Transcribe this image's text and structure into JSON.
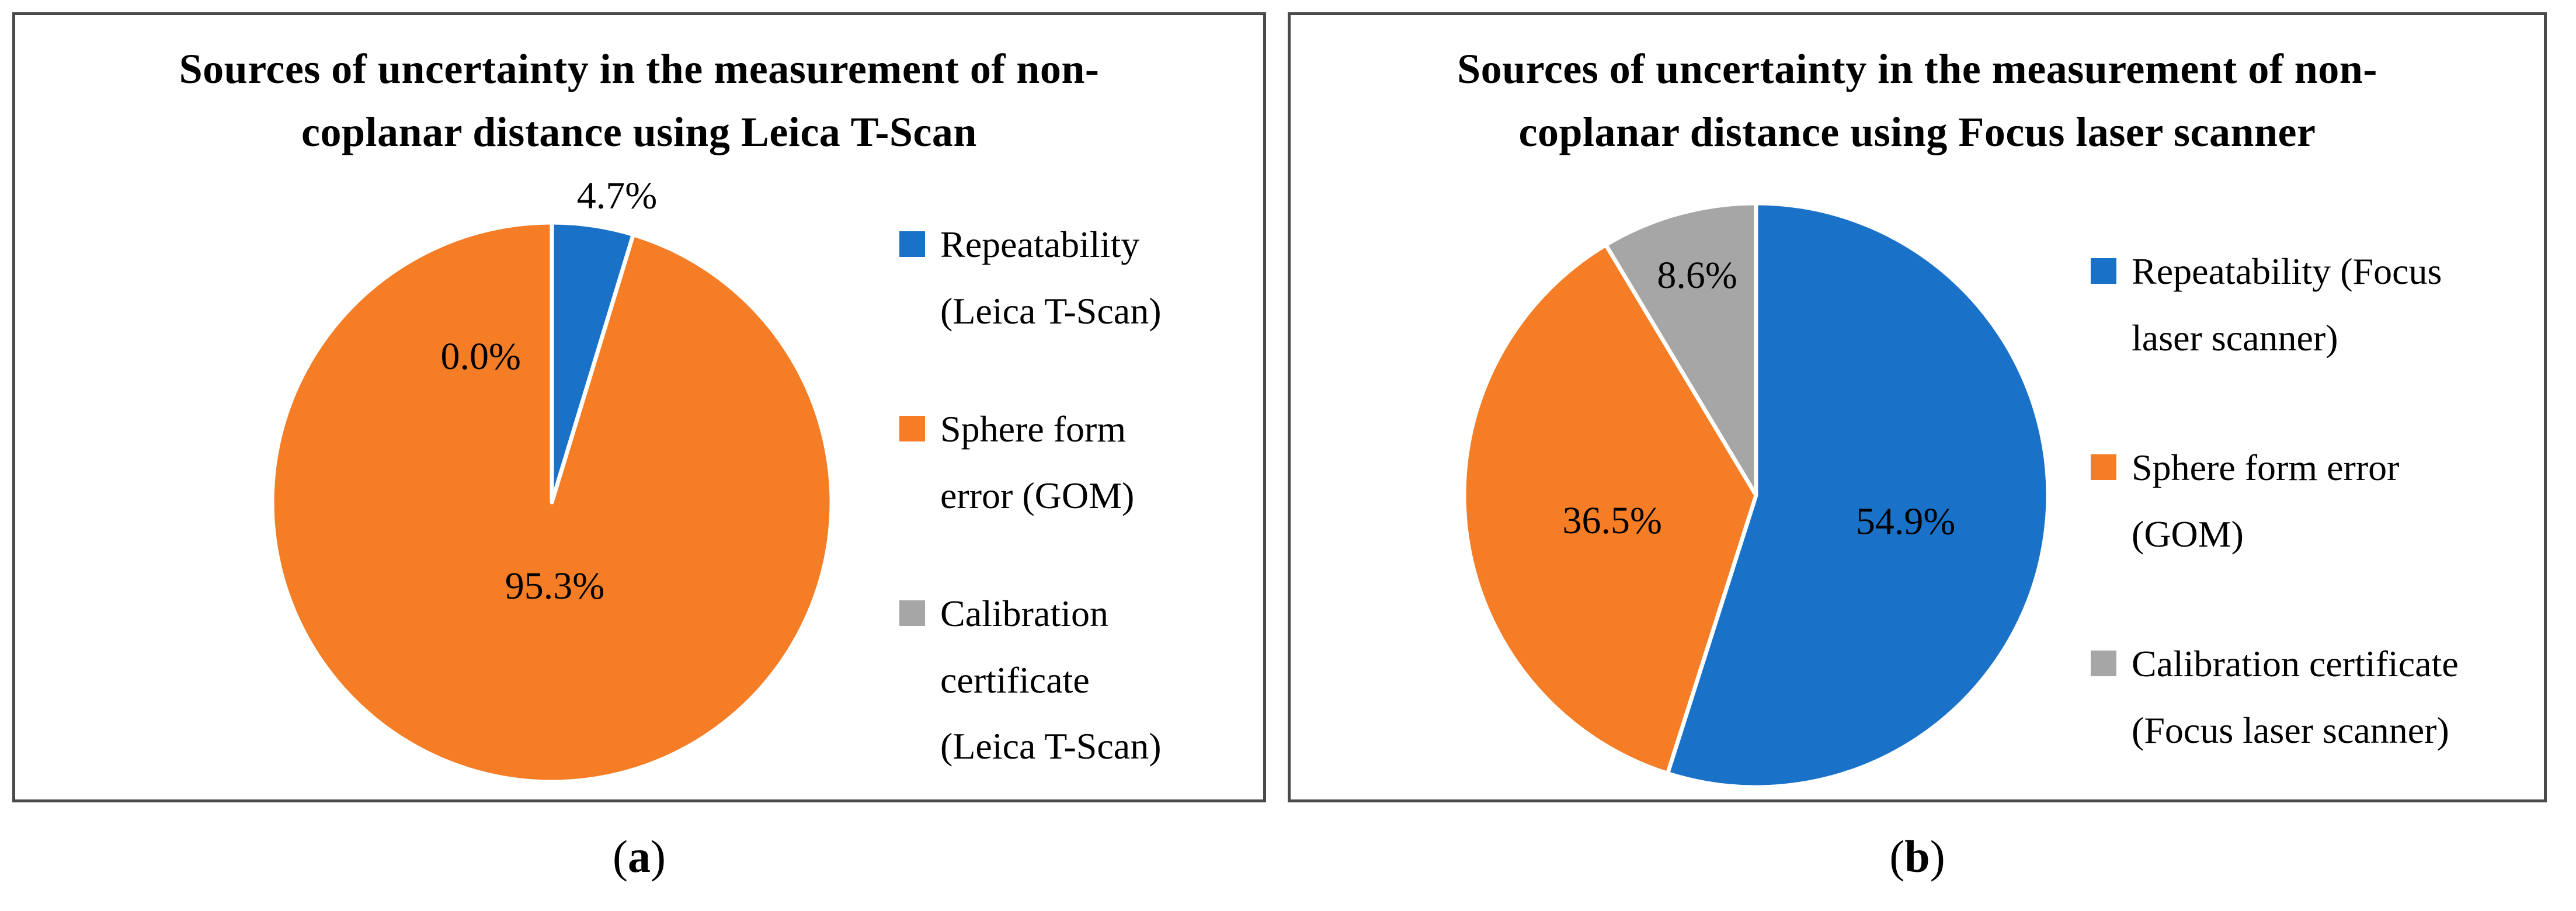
{
  "page": {
    "background": "#ffffff",
    "panel_border_color": "#4a4a4a"
  },
  "colors": {
    "blue": "#1A72C8",
    "orange": "#F57D26",
    "gray": "#A6A6A6",
    "text": "#000000"
  },
  "panels": [
    {
      "id": "a",
      "title_display": "Sources of uncertainty in the measurement of non-\ncoplanar distance using Leica T-Scan",
      "legend": [
        {
          "label_display": "Repeatability\n(Leica T-Scan)",
          "color": "#1A72C8"
        },
        {
          "label_display": "Sphere form\nerror (GOM)",
          "color": "#F57D26"
        },
        {
          "label_display": "Calibration\ncertificate\n(Leica T-Scan)",
          "color": "#A6A6A6"
        }
      ],
      "caption": {
        "open": "(",
        "letter": "a",
        "close": ")"
      }
    },
    {
      "id": "b",
      "title_display": "Sources of uncertainty in the measurement of non-\ncoplanar distance using Focus laser scanner",
      "legend": [
        {
          "label_display": "Repeatability (Focus\nlaser scanner)",
          "color": "#1A72C8"
        },
        {
          "label_display": "Sphere form error\n(GOM)",
          "color": "#F57D26"
        },
        {
          "label_display": "Calibration certificate\n(Focus laser scanner)",
          "color": "#A6A6A6"
        }
      ],
      "caption": {
        "open": "(",
        "letter": "b",
        "close": ")"
      }
    }
  ],
  "chart_data": [
    {
      "type": "pie",
      "title": "Sources of uncertainty in the measurement of non-coplanar distance using Leica T-Scan",
      "start_angle_deg": 0,
      "direction": "clockwise",
      "legend_position": "right",
      "slices": [
        {
          "name": "Repeatability (Leica T-Scan)",
          "value_pct": 4.7,
          "data_label": "4.7%",
          "color": "#1A72C8",
          "label_angle_deg": 12,
          "label_r_frac": 1.12,
          "label_inside": false
        },
        {
          "name": "Sphere form error (GOM)",
          "value_pct": 95.3,
          "data_label": "95.3%",
          "color": "#F57D26",
          "label_angle_deg": 178,
          "label_r_frac": 0.3,
          "label_inside": true
        },
        {
          "name": "Calibration certificate (Leica T-Scan)",
          "value_pct": 0.0,
          "data_label": "0.0%",
          "color": "#A6A6A6",
          "label_angle_deg": 334,
          "label_r_frac": 0.58,
          "label_inside": true
        }
      ]
    },
    {
      "type": "pie",
      "title": "Sources of uncertainty in the measurement of non-coplanar distance using Focus laser scanner",
      "start_angle_deg": 0,
      "direction": "clockwise",
      "legend_position": "right",
      "slices": [
        {
          "name": "Repeatability (Focus laser scanner)",
          "value_pct": 54.9,
          "data_label": "54.9%",
          "color": "#1A72C8",
          "label_angle_deg": 100,
          "label_r_frac": 0.52,
          "label_inside": true
        },
        {
          "name": "Sphere form error (GOM)",
          "value_pct": 36.5,
          "data_label": "36.5%",
          "color": "#F57D26",
          "label_angle_deg": 260,
          "label_r_frac": 0.5,
          "label_inside": true
        },
        {
          "name": "Calibration certificate (Focus laser scanner)",
          "value_pct": 8.6,
          "data_label": "8.6%",
          "color": "#A6A6A6",
          "label_angle_deg": 345,
          "label_r_frac": 0.78,
          "label_inside": true
        }
      ]
    }
  ]
}
